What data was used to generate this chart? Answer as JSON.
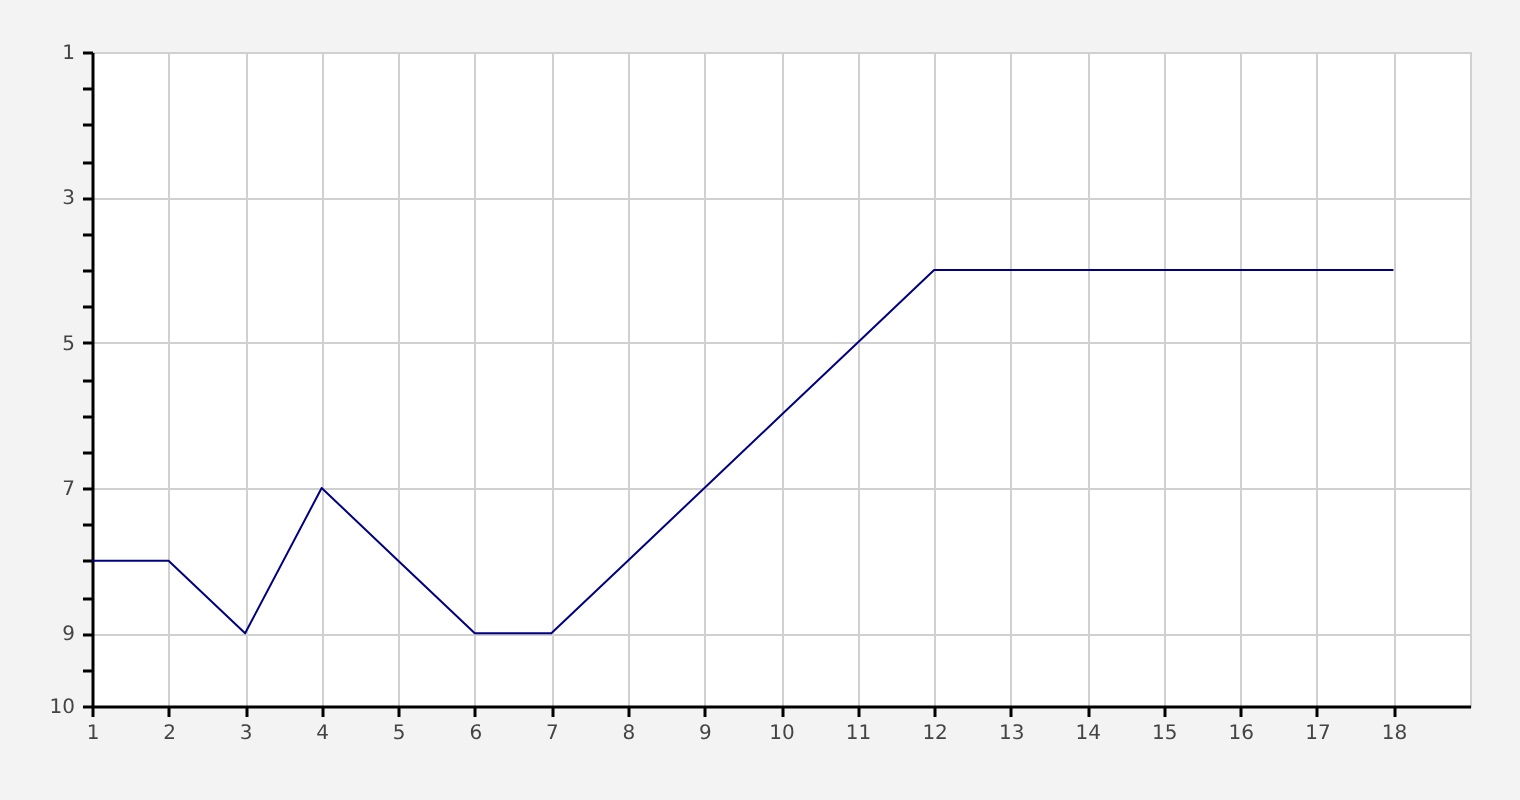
{
  "chart_data": {
    "type": "line",
    "x": [
      1,
      2,
      3,
      4,
      5,
      6,
      7,
      8,
      9,
      10,
      11,
      12,
      13,
      14,
      15,
      16,
      17,
      18
    ],
    "series": [
      {
        "color": "#000080",
        "values": [
          8,
          8,
          9,
          7,
          8,
          9,
          9,
          8,
          7,
          6,
          5,
          4,
          4,
          4,
          4,
          4,
          4,
          4
        ]
      }
    ],
    "xlim": [
      1,
      19
    ],
    "xticks": [
      1,
      2,
      3,
      4,
      5,
      6,
      7,
      8,
      9,
      10,
      11,
      12,
      13,
      14,
      15,
      16,
      17,
      18
    ],
    "ylim": [
      10,
      1
    ],
    "yticks": [
      1,
      {
        "value": 1.5,
        "label": null
      },
      {
        "value": 2,
        "label": null
      },
      {
        "value": 2.5,
        "label": null
      },
      3,
      {
        "value": 3.5,
        "label": null
      },
      {
        "value": 4,
        "label": null
      },
      {
        "value": 4.5,
        "label": null
      },
      5,
      {
        "value": 5.5,
        "label": null
      },
      {
        "value": 6,
        "label": null
      },
      {
        "value": 6.5,
        "label": null
      },
      7,
      {
        "value": 7.5,
        "label": null
      },
      {
        "value": 8,
        "label": null
      },
      {
        "value": 8.5,
        "label": null
      },
      9,
      {
        "value": 9.5,
        "label": null
      },
      10
    ],
    "grid": true,
    "line_style": "solid"
  }
}
